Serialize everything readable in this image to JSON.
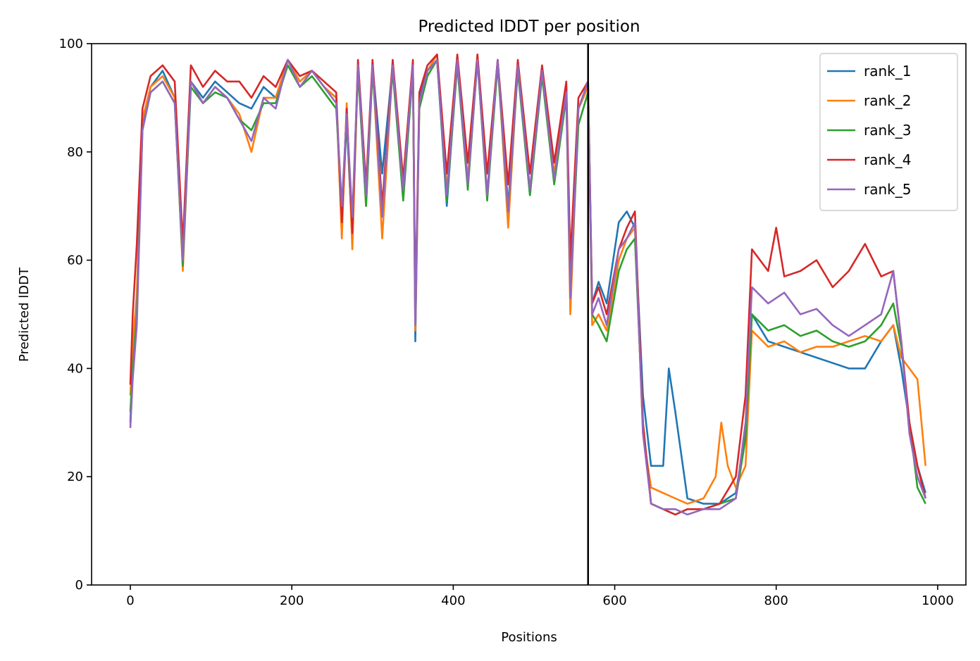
{
  "chart_data": {
    "type": "line",
    "title": "Predicted lDDT per position",
    "xlabel": "Positions",
    "ylabel": "Predicted lDDT",
    "xlim": [
      -48,
      1035
    ],
    "ylim": [
      0,
      100
    ],
    "xticks": [
      0,
      200,
      400,
      600,
      800,
      1000
    ],
    "yticks": [
      0,
      20,
      40,
      60,
      80,
      100
    ],
    "grid": false,
    "legend_position": "top-right",
    "vertical_line_x": 567,
    "series": [
      {
        "name": "rank_1",
        "color": "#1f77b4",
        "x": [
          0,
          3,
          8,
          15,
          25,
          40,
          55,
          65,
          75,
          90,
          105,
          120,
          135,
          150,
          165,
          180,
          195,
          210,
          225,
          240,
          255,
          262,
          268,
          275,
          282,
          292,
          300,
          312,
          325,
          338,
          350,
          353,
          358,
          368,
          380,
          392,
          405,
          418,
          430,
          442,
          455,
          468,
          480,
          495,
          510,
          525,
          540,
          545,
          555,
          567,
          572,
          580,
          590,
          605,
          615,
          625,
          635,
          645,
          660,
          667,
          675,
          690,
          710,
          730,
          750,
          762,
          770,
          790,
          810,
          830,
          850,
          870,
          890,
          910,
          930,
          945,
          955,
          965,
          975,
          985
        ],
        "y": [
          30,
          42,
          52,
          85,
          92,
          95,
          90,
          60,
          93,
          90,
          93,
          91,
          89,
          88,
          92,
          90,
          97,
          93,
          95,
          92,
          90,
          66,
          86,
          64,
          96,
          72,
          96,
          76,
          96,
          72,
          96,
          45,
          90,
          95,
          97,
          70,
          97,
          74,
          97,
          72,
          97,
          70,
          96,
          72,
          95,
          75,
          92,
          55,
          88,
          92,
          52,
          56,
          52,
          67,
          69,
          66,
          35,
          22,
          22,
          40,
          32,
          16,
          15,
          15,
          17,
          28,
          50,
          45,
          44,
          43,
          42,
          41,
          40,
          40,
          45,
          48,
          40,
          30,
          22,
          17
        ]
      },
      {
        "name": "rank_2",
        "color": "#ff7f0e",
        "x": [
          0,
          3,
          8,
          15,
          25,
          40,
          55,
          65,
          75,
          90,
          105,
          120,
          135,
          150,
          165,
          180,
          195,
          210,
          225,
          240,
          255,
          262,
          268,
          275,
          282,
          292,
          300,
          312,
          325,
          338,
          350,
          353,
          358,
          368,
          380,
          392,
          405,
          418,
          430,
          442,
          455,
          468,
          480,
          495,
          510,
          525,
          540,
          545,
          555,
          567,
          572,
          580,
          590,
          605,
          615,
          625,
          635,
          645,
          660,
          675,
          690,
          710,
          725,
          732,
          740,
          750,
          762,
          770,
          790,
          810,
          830,
          850,
          870,
          890,
          910,
          930,
          945,
          955,
          965,
          975,
          985
        ],
        "y": [
          35,
          44,
          54,
          86,
          92,
          94,
          90,
          58,
          93,
          89,
          92,
          90,
          87,
          80,
          90,
          90,
          97,
          93,
          95,
          92,
          90,
          64,
          89,
          62,
          96,
          70,
          96,
          64,
          96,
          73,
          96,
          47,
          88,
          95,
          98,
          73,
          97,
          75,
          98,
          72,
          97,
          66,
          96,
          73,
          95,
          76,
          91,
          50,
          88,
          92,
          48,
          50,
          47,
          60,
          64,
          66,
          28,
          18,
          17,
          16,
          15,
          16,
          20,
          30,
          22,
          18,
          22,
          47,
          44,
          45,
          43,
          44,
          44,
          45,
          46,
          45,
          48,
          42,
          40,
          38,
          22
        ]
      },
      {
        "name": "rank_3",
        "color": "#2ca02c",
        "x": [
          0,
          3,
          8,
          15,
          25,
          40,
          55,
          65,
          75,
          90,
          105,
          120,
          135,
          150,
          165,
          180,
          195,
          210,
          225,
          240,
          255,
          262,
          268,
          275,
          282,
          292,
          300,
          312,
          325,
          338,
          350,
          353,
          358,
          368,
          380,
          392,
          405,
          418,
          430,
          442,
          455,
          468,
          480,
          495,
          510,
          525,
          540,
          545,
          555,
          567,
          572,
          580,
          590,
          605,
          615,
          625,
          635,
          645,
          660,
          675,
          690,
          710,
          730,
          750,
          762,
          770,
          790,
          810,
          830,
          850,
          870,
          890,
          910,
          930,
          945,
          955,
          965,
          975,
          985
        ],
        "y": [
          32,
          40,
          50,
          84,
          91,
          93,
          89,
          59,
          92,
          89,
          91,
          90,
          86,
          84,
          89,
          89,
          96,
          92,
          94,
          91,
          88,
          70,
          86,
          66,
          95,
          70,
          95,
          70,
          95,
          71,
          95,
          50,
          88,
          94,
          97,
          71,
          96,
          73,
          97,
          71,
          96,
          69,
          95,
          72,
          94,
          74,
          90,
          54,
          85,
          91,
          50,
          48,
          45,
          58,
          62,
          64,
          30,
          15,
          14,
          13,
          14,
          14,
          15,
          16,
          27,
          50,
          47,
          48,
          46,
          47,
          45,
          44,
          45,
          48,
          52,
          44,
          30,
          18,
          15
        ]
      },
      {
        "name": "rank_4",
        "color": "#d62728",
        "x": [
          0,
          3,
          8,
          15,
          25,
          40,
          55,
          65,
          75,
          90,
          105,
          120,
          135,
          150,
          165,
          180,
          195,
          210,
          225,
          240,
          255,
          262,
          268,
          275,
          282,
          292,
          300,
          312,
          325,
          338,
          350,
          353,
          358,
          368,
          380,
          392,
          405,
          418,
          430,
          442,
          455,
          468,
          480,
          495,
          510,
          525,
          540,
          545,
          555,
          567,
          572,
          580,
          590,
          605,
          615,
          625,
          635,
          645,
          660,
          675,
          690,
          710,
          730,
          750,
          762,
          770,
          790,
          800,
          810,
          830,
          850,
          870,
          890,
          910,
          930,
          945,
          955,
          965,
          975,
          985
        ],
        "y": [
          37,
          50,
          63,
          88,
          94,
          96,
          93,
          63,
          96,
          92,
          95,
          93,
          93,
          90,
          94,
          92,
          97,
          94,
          95,
          93,
          91,
          67,
          88,
          65,
          97,
          74,
          97,
          70,
          97,
          75,
          97,
          50,
          91,
          96,
          98,
          76,
          98,
          78,
          98,
          76,
          97,
          74,
          97,
          76,
          96,
          78,
          93,
          60,
          90,
          93,
          52,
          55,
          50,
          62,
          66,
          69,
          30,
          15,
          14,
          13,
          14,
          14,
          15,
          20,
          35,
          62,
          58,
          66,
          57,
          58,
          60,
          55,
          58,
          63,
          57,
          58,
          45,
          30,
          22,
          16
        ]
      },
      {
        "name": "rank_5",
        "color": "#9467bd",
        "x": [
          0,
          3,
          8,
          15,
          25,
          40,
          55,
          65,
          75,
          90,
          105,
          120,
          135,
          150,
          165,
          180,
          195,
          210,
          225,
          240,
          255,
          262,
          268,
          275,
          282,
          292,
          300,
          312,
          325,
          338,
          350,
          353,
          358,
          368,
          380,
          392,
          405,
          418,
          430,
          442,
          455,
          468,
          480,
          495,
          510,
          525,
          540,
          545,
          555,
          567,
          572,
          580,
          590,
          605,
          615,
          625,
          635,
          645,
          660,
          675,
          690,
          710,
          730,
          750,
          762,
          770,
          790,
          810,
          830,
          850,
          870,
          890,
          910,
          930,
          945,
          955,
          965,
          975,
          985
        ],
        "y": [
          29,
          38,
          48,
          84,
          91,
          93,
          89,
          60,
          93,
          89,
          92,
          90,
          86,
          82,
          90,
          88,
          97,
          92,
          95,
          92,
          89,
          70,
          87,
          68,
          96,
          72,
          96,
          68,
          96,
          73,
          96,
          48,
          89,
          95,
          97,
          72,
          97,
          74,
          97,
          72,
          97,
          69,
          96,
          73,
          95,
          75,
          91,
          53,
          88,
          93,
          50,
          53,
          48,
          62,
          64,
          67,
          28,
          15,
          14,
          14,
          13,
          14,
          14,
          16,
          30,
          55,
          52,
          54,
          50,
          51,
          48,
          46,
          48,
          50,
          58,
          45,
          28,
          20,
          16
        ]
      }
    ]
  }
}
